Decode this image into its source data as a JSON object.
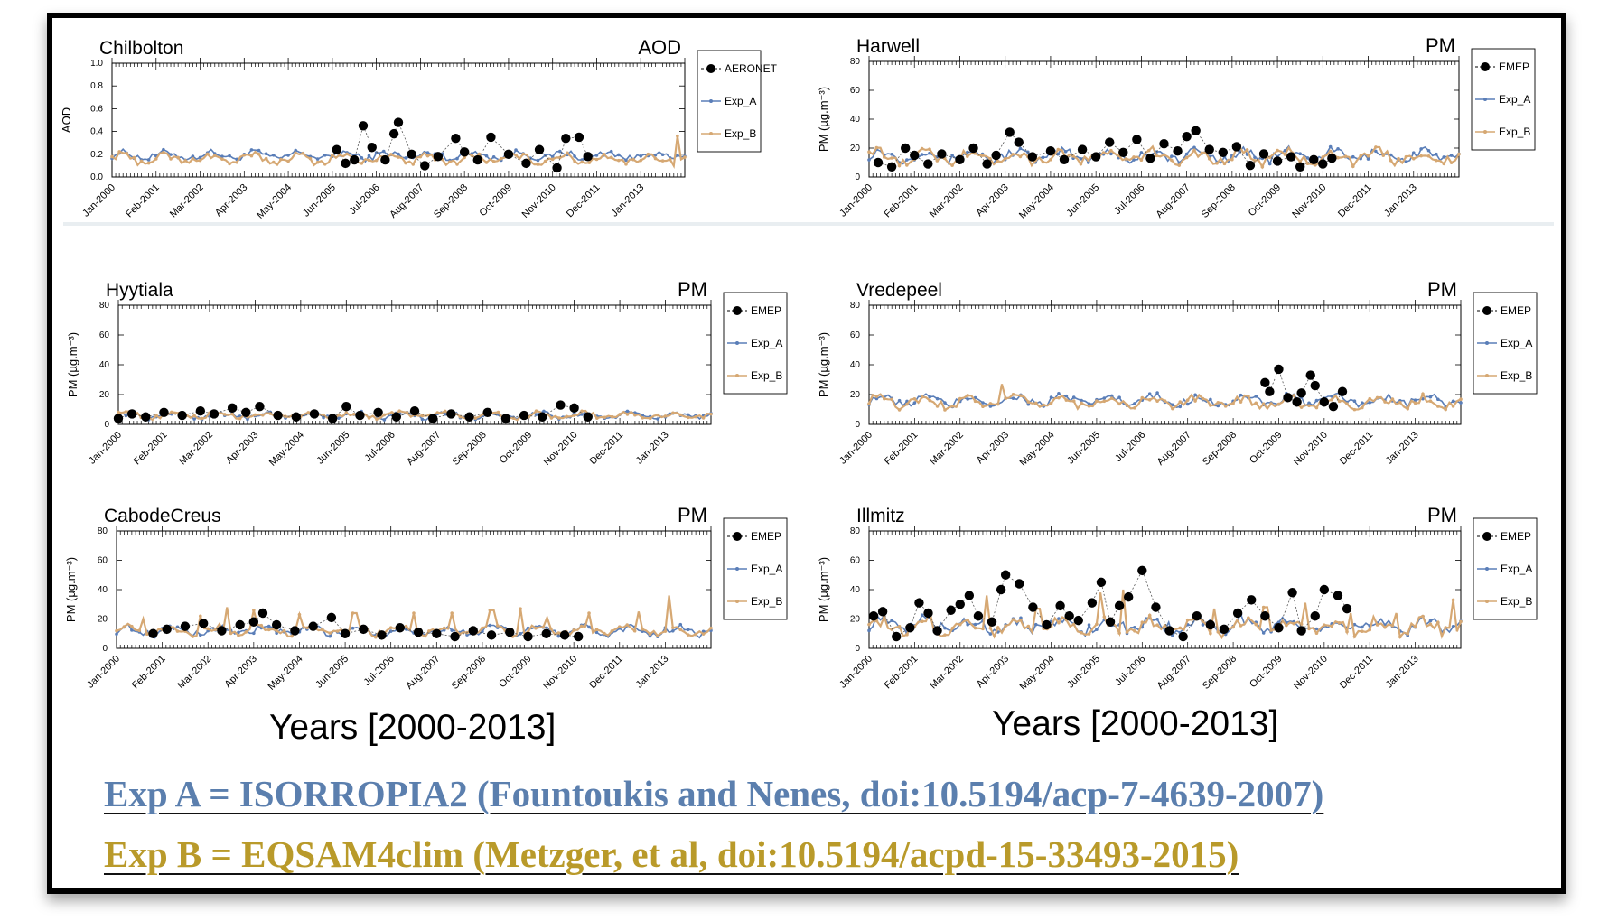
{
  "xaxis_label": "Years [2000-2013]",
  "x_tick_labels": [
    "Jan-2000",
    "Feb-2001",
    "Mar-2002",
    "Apr-2003",
    "May-2004",
    "Jun-2005",
    "Jul-2006",
    "Aug-2007",
    "Sep-2008",
    "Oct-2009",
    "Nov-2010",
    "Dec-2011",
    "Jan-2013"
  ],
  "captions": {
    "exp_a": "Exp A = ISORROPIA2 (Fountoukis and Nenes, doi:10.5194/acp-7-4639-2007)",
    "exp_b": "Exp B = EQSAM4clim (Metzger, et al, doi:10.5194/acpd-15-33493-2015)"
  },
  "colors": {
    "obs": "#000000",
    "exp_a": "#5a7eb8",
    "exp_b": "#d6a873",
    "caption_a": "#5b7fae",
    "caption_b": "#b99a2a"
  },
  "chart_data": [
    {
      "type": "line",
      "title": "Chilbolton",
      "variable": "AOD",
      "ylabel": "AOD",
      "ylim": [
        0,
        1.0
      ],
      "yticks": [
        "0.0",
        "0.2",
        "0.4",
        "0.6",
        "0.8",
        "1.0"
      ],
      "xlim": [
        2000.0,
        2013.0
      ],
      "legend": [
        "AERONET",
        "Exp_A",
        "Exp_B"
      ],
      "legend_position": "right",
      "series": [
        {
          "name": "AERONET",
          "x": [
            2005.1,
            2005.3,
            2005.5,
            2005.7,
            2005.9,
            2006.2,
            2006.4,
            2006.5,
            2006.8,
            2007.1,
            2007.4,
            2007.8,
            2008.0,
            2008.3,
            2008.6,
            2009.0,
            2009.4,
            2009.7,
            2010.1,
            2010.3,
            2010.6,
            2010.8
          ],
          "y": [
            0.24,
            0.12,
            0.15,
            0.45,
            0.26,
            0.15,
            0.38,
            0.48,
            0.2,
            0.1,
            0.18,
            0.34,
            0.22,
            0.15,
            0.35,
            0.2,
            0.12,
            0.24,
            0.08,
            0.34,
            0.35,
            0.18
          ]
        },
        {
          "name": "Exp_A",
          "baseline": 0.19,
          "amplitude": 0.035
        },
        {
          "name": "Exp_B",
          "baseline": 0.16,
          "amplitude": 0.04,
          "spikes": [
            {
              "x": 2012.8,
              "y": 0.36
            }
          ]
        }
      ]
    },
    {
      "type": "line",
      "title": "Harwell",
      "variable": "PM",
      "ylabel": "PM (µg.m⁻³)",
      "ylim": [
        0,
        80
      ],
      "yticks": [
        "0",
        "20",
        "40",
        "60",
        "80"
      ],
      "xlim": [
        2000.0,
        2013.0
      ],
      "legend": [
        "EMEP",
        "Exp_A",
        "Exp_B"
      ],
      "legend_position": "right",
      "series": [
        {
          "name": "EMEP",
          "x": [
            2000.2,
            2000.5,
            2000.8,
            2001.0,
            2001.3,
            2001.6,
            2002.0,
            2002.3,
            2002.6,
            2002.8,
            2003.1,
            2003.3,
            2003.6,
            2004.0,
            2004.3,
            2004.7,
            2005.0,
            2005.3,
            2005.6,
            2005.9,
            2006.2,
            2006.5,
            2006.8,
            2007.0,
            2007.2,
            2007.5,
            2007.8,
            2008.1,
            2008.4,
            2008.7,
            2009.0,
            2009.3,
            2009.5,
            2009.8,
            2010.0,
            2010.2
          ],
          "y": [
            10,
            7,
            20,
            15,
            9,
            16,
            12,
            20,
            9,
            15,
            31,
            24,
            14,
            18,
            12,
            19,
            14,
            24,
            17,
            26,
            13,
            23,
            18,
            28,
            32,
            19,
            17,
            21,
            8,
            16,
            11,
            14,
            7,
            12,
            9,
            13
          ]
        },
        {
          "name": "Exp_A",
          "baseline": 15,
          "amplitude": 4
        },
        {
          "name": "Exp_B",
          "baseline": 14,
          "amplitude": 4.5
        }
      ]
    },
    {
      "type": "line",
      "title": "Hyytiala",
      "variable": "PM",
      "ylabel": "PM (µg.m⁻³)",
      "ylim": [
        0,
        80
      ],
      "yticks": [
        "0",
        "20",
        "40",
        "60",
        "80"
      ],
      "xlim": [
        2000.0,
        2013.0
      ],
      "legend": [
        "EMEP",
        "Exp_A",
        "Exp_B"
      ],
      "legend_position": "right",
      "series": [
        {
          "name": "EMEP",
          "x": [
            2000.0,
            2000.3,
            2000.6,
            2001.0,
            2001.4,
            2001.8,
            2002.1,
            2002.5,
            2002.8,
            2003.1,
            2003.5,
            2003.9,
            2004.3,
            2004.7,
            2005.0,
            2005.3,
            2005.7,
            2006.1,
            2006.5,
            2006.9,
            2007.3,
            2007.7,
            2008.1,
            2008.5,
            2008.9,
            2009.3,
            2009.7,
            2010.0,
            2010.3
          ],
          "y": [
            4,
            7,
            5,
            8,
            6,
            9,
            7,
            11,
            8,
            12,
            6,
            5,
            7,
            4,
            12,
            6,
            8,
            5,
            9,
            4,
            7,
            5,
            8,
            4,
            6,
            5,
            13,
            11,
            5
          ]
        },
        {
          "name": "Exp_A",
          "baseline": 6,
          "amplitude": 2
        },
        {
          "name": "Exp_B",
          "baseline": 6,
          "amplitude": 2
        }
      ]
    },
    {
      "type": "line",
      "title": "Vredepeel",
      "variable": "PM",
      "ylabel": "PM (µg.m⁻³)",
      "ylim": [
        0,
        80
      ],
      "yticks": [
        "0",
        "20",
        "40",
        "60",
        "80"
      ],
      "xlim": [
        2000.0,
        2013.0
      ],
      "legend": [
        "EMEP",
        "Exp_A",
        "Exp_B"
      ],
      "legend_position": "right",
      "series": [
        {
          "name": "EMEP",
          "x": [
            2008.7,
            2008.8,
            2009.0,
            2009.2,
            2009.4,
            2009.5,
            2009.7,
            2009.8,
            2010.0,
            2010.2,
            2010.4
          ],
          "y": [
            28,
            22,
            37,
            18,
            15,
            21,
            33,
            26,
            15,
            12,
            22
          ]
        },
        {
          "name": "Exp_A",
          "baseline": 16,
          "amplitude": 3.5
        },
        {
          "name": "Exp_B",
          "baseline": 15,
          "amplitude": 3.5,
          "spikes": [
            {
              "x": 2002.9,
              "y": 27
            }
          ]
        }
      ]
    },
    {
      "type": "line",
      "title": "CabodeCreus",
      "variable": "PM",
      "ylabel": "PM (µg.m⁻³)",
      "ylim": [
        0,
        80
      ],
      "yticks": [
        "0",
        "20",
        "40",
        "60",
        "80"
      ],
      "xlim": [
        2000.0,
        2013.0
      ],
      "legend": [
        "EMEP",
        "Exp_A",
        "Exp_B"
      ],
      "legend_position": "right",
      "series": [
        {
          "name": "EMEP",
          "x": [
            2000.8,
            2001.1,
            2001.5,
            2001.9,
            2002.3,
            2002.7,
            2003.0,
            2003.2,
            2003.5,
            2003.9,
            2004.3,
            2004.7,
            2005.0,
            2005.4,
            2005.8,
            2006.2,
            2006.6,
            2007.0,
            2007.4,
            2007.8,
            2008.2,
            2008.6,
            2009.0,
            2009.4,
            2009.8,
            2010.1
          ],
          "y": [
            10,
            13,
            15,
            17,
            12,
            16,
            18,
            24,
            16,
            12,
            15,
            21,
            10,
            13,
            9,
            14,
            11,
            10,
            8,
            12,
            9,
            11,
            8,
            10,
            9,
            8
          ]
        },
        {
          "name": "Exp_A",
          "baseline": 12,
          "amplitude": 3
        },
        {
          "name": "Exp_B",
          "baseline": 12,
          "amplitude": 3,
          "spikes": [
            {
              "x": 2000.6,
              "y": 20
            },
            {
              "x": 2001.8,
              "y": 22
            },
            {
              "x": 2002.4,
              "y": 28
            },
            {
              "x": 2003.0,
              "y": 26
            },
            {
              "x": 2004.0,
              "y": 23
            },
            {
              "x": 2005.2,
              "y": 24
            },
            {
              "x": 2006.5,
              "y": 24
            },
            {
              "x": 2007.3,
              "y": 24
            },
            {
              "x": 2008.2,
              "y": 26
            },
            {
              "x": 2008.8,
              "y": 27
            },
            {
              "x": 2009.4,
              "y": 21
            },
            {
              "x": 2010.3,
              "y": 24
            },
            {
              "x": 2011.4,
              "y": 25
            },
            {
              "x": 2012.1,
              "y": 36
            }
          ]
        }
      ]
    },
    {
      "type": "line",
      "title": "Illmitz",
      "variable": "PM",
      "ylabel": "PM (µg.m⁻³)",
      "ylim": [
        0,
        80
      ],
      "yticks": [
        "0",
        "20",
        "40",
        "60",
        "80"
      ],
      "xlim": [
        2000.0,
        2013.0
      ],
      "legend": [
        "EMEP",
        "Exp_A",
        "Exp_B"
      ],
      "legend_position": "right",
      "series": [
        {
          "name": "EMEP",
          "x": [
            2000.1,
            2000.3,
            2000.6,
            2000.9,
            2001.1,
            2001.3,
            2001.5,
            2001.8,
            2002.0,
            2002.2,
            2002.4,
            2002.7,
            2002.9,
            2003.0,
            2003.3,
            2003.6,
            2003.9,
            2004.2,
            2004.4,
            2004.6,
            2004.9,
            2005.1,
            2005.3,
            2005.5,
            2005.7,
            2006.0,
            2006.3,
            2006.6,
            2006.9,
            2007.2,
            2007.5,
            2007.8,
            2008.1,
            2008.4,
            2008.7,
            2009.0,
            2009.3,
            2009.5,
            2009.8,
            2010.0,
            2010.3,
            2010.5
          ],
          "y": [
            22,
            25,
            8,
            14,
            31,
            24,
            12,
            26,
            30,
            36,
            22,
            18,
            40,
            50,
            44,
            28,
            16,
            29,
            22,
            19,
            31,
            45,
            18,
            29,
            35,
            53,
            28,
            12,
            8,
            22,
            16,
            13,
            24,
            33,
            22,
            14,
            38,
            12,
            22,
            40,
            36,
            27
          ]
        },
        {
          "name": "Exp_A",
          "baseline": 16,
          "amplitude": 5
        },
        {
          "name": "Exp_B",
          "baseline": 15,
          "amplitude": 5,
          "spikes": [
            {
              "x": 2001.3,
              "y": 25
            },
            {
              "x": 2002.6,
              "y": 36
            },
            {
              "x": 2003.7,
              "y": 27
            },
            {
              "x": 2005.1,
              "y": 38
            },
            {
              "x": 2005.6,
              "y": 40
            },
            {
              "x": 2007.6,
              "y": 27
            },
            {
              "x": 2008.7,
              "y": 28
            },
            {
              "x": 2009.6,
              "y": 31
            },
            {
              "x": 2010.6,
              "y": 24
            },
            {
              "x": 2011.6,
              "y": 24
            },
            {
              "x": 2012.8,
              "y": 33
            }
          ]
        }
      ]
    }
  ]
}
